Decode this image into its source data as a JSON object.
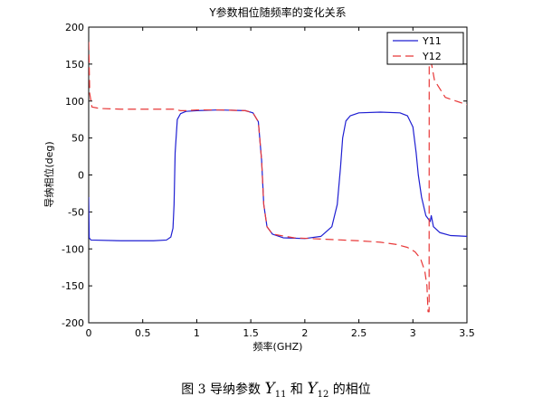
{
  "chart_data": {
    "type": "line",
    "title": "Y参数相位随频率的变化关系",
    "xlabel": "频率(GHZ)",
    "ylabel": "导纳相位(deg)",
    "xlim": [
      0,
      3.5
    ],
    "ylim": [
      -200,
      200
    ],
    "xticks": [
      "0",
      "0.5",
      "1",
      "1.5",
      "2",
      "2.5",
      "3",
      "3.5"
    ],
    "yticks": [
      "200",
      "150",
      "100",
      "50",
      "0",
      "-50",
      "-100",
      "-150",
      "-200"
    ],
    "grid": false,
    "legend_position": "top-right",
    "series": [
      {
        "name": "Y11",
        "color": "#1f1fd2",
        "style": "solid",
        "x": [
          0.0,
          0.005,
          0.02,
          0.3,
          0.6,
          0.72,
          0.76,
          0.78,
          0.79,
          0.8,
          0.82,
          0.85,
          0.9,
          1.0,
          1.2,
          1.45,
          1.52,
          1.57,
          1.6,
          1.62,
          1.65,
          1.7,
          1.8,
          2.0,
          2.15,
          2.25,
          2.3,
          2.33,
          2.35,
          2.38,
          2.42,
          2.5,
          2.7,
          2.88,
          2.95,
          3.0,
          3.03,
          3.05,
          3.08,
          3.12,
          3.16,
          3.17,
          3.19,
          3.25,
          3.35,
          3.5
        ],
        "y": [
          -30,
          -85,
          -88,
          -89,
          -89,
          -88,
          -84,
          -72,
          -40,
          30,
          75,
          83,
          86,
          87,
          88,
          87,
          84,
          72,
          20,
          -40,
          -70,
          -80,
          -85,
          -86,
          -83,
          -70,
          -40,
          10,
          50,
          73,
          80,
          84,
          85,
          84,
          80,
          65,
          30,
          0,
          -30,
          -55,
          -63,
          -55,
          -70,
          -78,
          -82,
          -83
        ]
      },
      {
        "name": "Y12",
        "color": "#e83838",
        "style": "dashed",
        "x": [
          0.0,
          0.01,
          0.03,
          0.1,
          0.3,
          0.6,
          0.76,
          0.8,
          0.82,
          0.85,
          0.9,
          1.0,
          1.2,
          1.45,
          1.52,
          1.57,
          1.6,
          1.62,
          1.65,
          1.7,
          1.9,
          2.2,
          2.5,
          2.7,
          2.85,
          2.95,
          3.02,
          3.07,
          3.11,
          3.13,
          3.14,
          3.15,
          3.151,
          3.16,
          3.2,
          3.3,
          3.5
        ],
        "y": [
          180,
          110,
          92,
          90,
          89,
          89,
          89,
          89,
          88,
          87,
          87,
          88,
          88,
          87,
          84,
          72,
          20,
          -40,
          -70,
          -80,
          -85,
          -87,
          -89,
          -91,
          -94,
          -98,
          -104,
          -113,
          -130,
          -150,
          -185,
          -185,
          180,
          160,
          128,
          105,
          95
        ]
      }
    ]
  },
  "caption": {
    "prefix": "图 3  导纳参数 ",
    "var1": "Y",
    "sub1": "11",
    "mid": " 和 ",
    "var2": "Y",
    "sub2": "12",
    "suffix": " 的相位"
  }
}
